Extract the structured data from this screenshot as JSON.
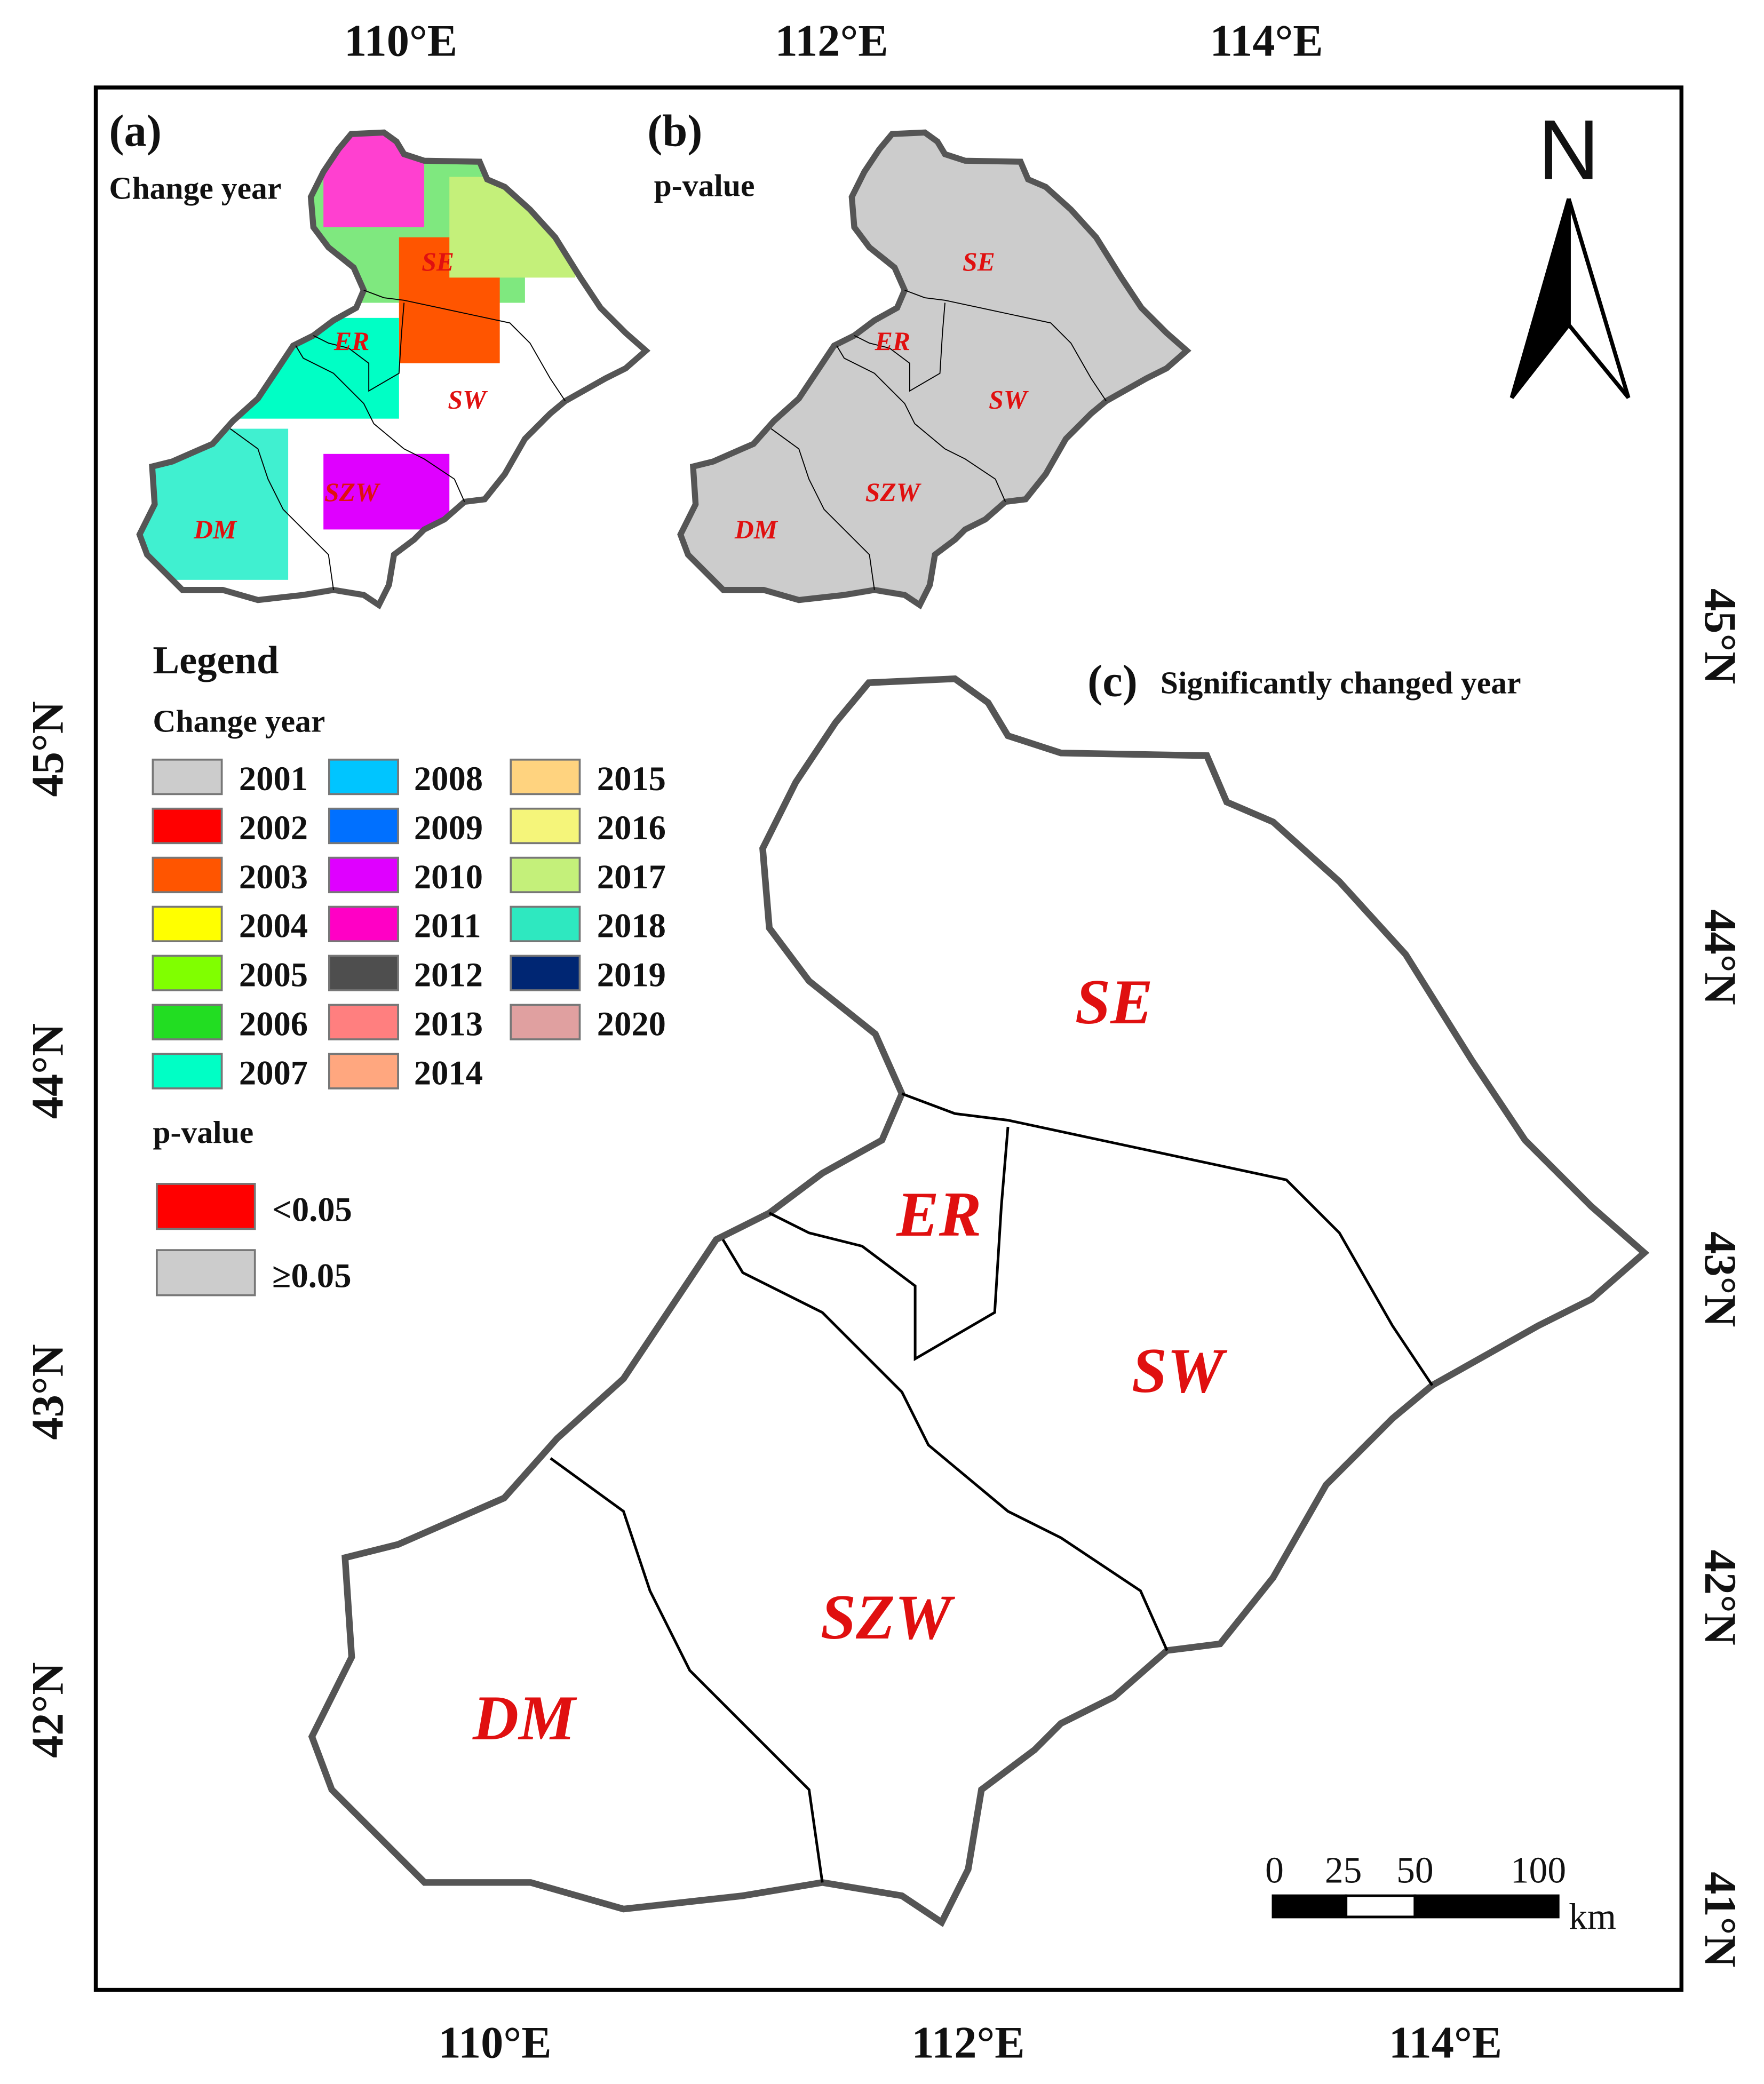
{
  "axes": {
    "top": [
      "110°E",
      "112°E",
      "114°E"
    ],
    "bottom": [
      "110°E",
      "112°E",
      "114°E"
    ],
    "left": [
      "45°N",
      "44°N",
      "43°N",
      "42°N"
    ],
    "right": [
      "45°N",
      "44°N",
      "43°N",
      "42°N",
      "41°N"
    ]
  },
  "panels": [
    {
      "label": "(a)",
      "title": "Change year"
    },
    {
      "label": "(b)",
      "title": "p-value"
    },
    {
      "label": "(c)",
      "title": "Significantly changed year"
    }
  ],
  "regions": [
    "SE",
    "ER",
    "SW",
    "SZW",
    "DM"
  ],
  "legend": {
    "title": "Legend",
    "change_year_title": "Change year",
    "change_years": [
      {
        "label": "2001",
        "color": "#cccccc"
      },
      {
        "label": "2002",
        "color": "#ff0000"
      },
      {
        "label": "2003",
        "color": "#ff5500"
      },
      {
        "label": "2004",
        "color": "#ffff00"
      },
      {
        "label": "2005",
        "color": "#80ff00"
      },
      {
        "label": "2006",
        "color": "#22dd22"
      },
      {
        "label": "2007",
        "color": "#00ffc5"
      },
      {
        "label": "2008",
        "color": "#00c5ff"
      },
      {
        "label": "2009",
        "color": "#0070ff"
      },
      {
        "label": "2010",
        "color": "#df00ff"
      },
      {
        "label": "2011",
        "color": "#ff00c5"
      },
      {
        "label": "2012",
        "color": "#4e4e4e"
      },
      {
        "label": "2013",
        "color": "#ff7f7f"
      },
      {
        "label": "2014",
        "color": "#ffa77f"
      },
      {
        "label": "2015",
        "color": "#ffd37f"
      },
      {
        "label": "2016",
        "color": "#f5f57a"
      },
      {
        "label": "2017",
        "color": "#c4f07a"
      },
      {
        "label": "2018",
        "color": "#2ee8c0"
      },
      {
        "label": "2019",
        "color": "#002673"
      },
      {
        "label": "2020",
        "color": "#e0a0a0"
      }
    ],
    "p_value_title": "p-value",
    "p_values": [
      {
        "label": "<0.05",
        "color": "#ff0000"
      },
      {
        "label": "≥0.05",
        "color": "#cccccc"
      }
    ]
  },
  "north": "N",
  "scale_bar": {
    "labels": [
      "0",
      "25",
      "50",
      "100"
    ],
    "unit": "km"
  }
}
